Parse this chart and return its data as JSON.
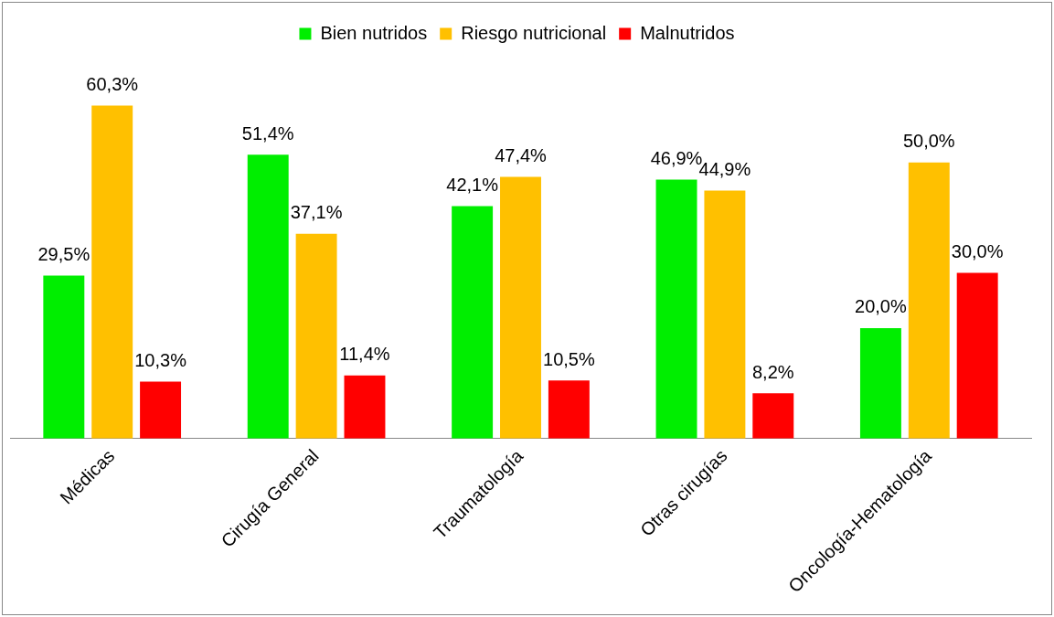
{
  "chart_data": {
    "type": "bar",
    "relative": false,
    "categories": [
      "Médicas",
      "Cirugía General",
      "Traumatología",
      "Otras cirugías",
      "Oncología-Hematología"
    ],
    "series": [
      {
        "name": "Bien nutridos",
        "color": "#00ee00",
        "values": [
          29.5,
          51.4,
          42.1,
          46.9,
          20.0
        ],
        "value_labels": [
          "29,5%",
          "51,4%",
          "42,1%",
          "46,9%",
          "20,0%"
        ]
      },
      {
        "name": "Riesgo nutricional",
        "color": "#ffc000",
        "values": [
          60.3,
          37.1,
          47.4,
          44.9,
          50.0
        ],
        "value_labels": [
          "60,3%",
          "37,1%",
          "47,4%",
          "44,9%",
          "50,0%"
        ]
      },
      {
        "name": "Malnutridos",
        "color": "#ff0000",
        "values": [
          10.3,
          11.4,
          10.5,
          8.2,
          30.0
        ],
        "value_labels": [
          "10,3%",
          "11,4%",
          "10,5%",
          "8,2%",
          "30,0%"
        ]
      }
    ],
    "legend": "top",
    "grid": false
  }
}
